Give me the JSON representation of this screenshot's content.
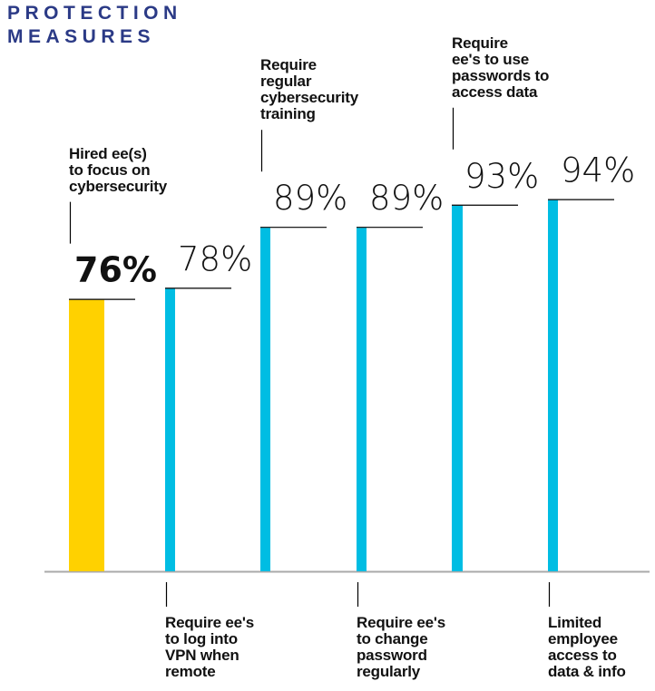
{
  "title_line1": "PROTECTION",
  "title_line2": "MEASURES",
  "colors": {
    "highlight": "#ffd100",
    "bar": "#00bde3",
    "title": "#2b3a86",
    "axis": "#aaaaaa"
  },
  "chart_data": {
    "type": "bar",
    "title": "PROTECTION MEASURES",
    "xlabel": "",
    "ylabel": "",
    "ylim": [
      27,
      100
    ],
    "grid": false,
    "categories": [
      "Hired ee(s)\nto focus on\ncybersecurity",
      "Require ee's\nto log into\nVPN when\nremote",
      "Require\nregular\ncybersecurity\ntraining",
      "Require ee's\nto change\npassword\nregularly",
      "Require\nee's to use\npasswords to\naccess data",
      "Limited\nemployee\naccess to\ndata & info"
    ],
    "values": [
      76,
      78,
      89,
      89,
      93,
      94
    ],
    "value_labels": [
      "76%",
      "78%",
      "89%",
      "89%",
      "93%",
      "94%"
    ],
    "label_positions": [
      "top",
      "bottom",
      "top",
      "bottom",
      "top",
      "bottom"
    ],
    "highlighted": [
      true,
      false,
      false,
      false,
      false,
      false
    ]
  }
}
